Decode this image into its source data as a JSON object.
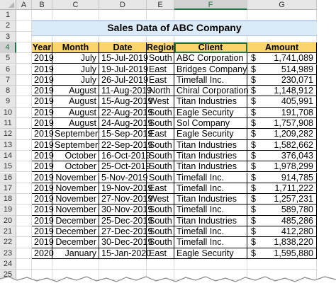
{
  "sheet": {
    "columns": [
      "A",
      "B",
      "C",
      "D",
      "E",
      "F",
      "G"
    ],
    "rows": [
      "1",
      "2",
      "3",
      "4",
      "5",
      "6",
      "7",
      "8",
      "9",
      "10",
      "11",
      "12",
      "13",
      "14",
      "15",
      "16",
      "17",
      "18",
      "19",
      "20",
      "21",
      "22",
      "23",
      "24",
      "25"
    ],
    "selected_column": "F",
    "selected_row": "4"
  },
  "title": "Sales Data of ABC Company",
  "table": {
    "headers": [
      "Year",
      "Month",
      "Date",
      "Region",
      "Client",
      "Amount"
    ],
    "currency_symbol": "$",
    "rows": [
      [
        "2019",
        "July",
        "15-Jul-2019",
        "South",
        "ABC Corporation",
        "1,741,089"
      ],
      [
        "2019",
        "July",
        "19-Jul-2019",
        "East",
        "Bridges Company",
        "514,989"
      ],
      [
        "2019",
        "July",
        "26-Jul-2019",
        "East",
        "Timefall Inc.",
        "230,071"
      ],
      [
        "2019",
        "August",
        "11-Aug-2019",
        "North",
        "Chiral Corporation",
        "1,148,912"
      ],
      [
        "2019",
        "August",
        "15-Aug-2019",
        "West",
        "Titan Industries",
        "405,991"
      ],
      [
        "2019",
        "August",
        "22-Aug-2019",
        "South",
        "Eagle Security",
        "191,708"
      ],
      [
        "2019",
        "August",
        "24-Aug-2019",
        "South",
        "Sol Company",
        "1,757,908"
      ],
      [
        "2019",
        "September",
        "15-Sep-2019",
        "East",
        "Eagle Security",
        "1,209,282"
      ],
      [
        "2019",
        "September",
        "22-Sep-2019",
        "South",
        "Titan Industries",
        "1,582,662"
      ],
      [
        "2019",
        "October",
        "16-Oct-2019",
        "South",
        "Titan Industries",
        "376,043"
      ],
      [
        "2019",
        "October",
        "25-Oct-2019",
        "South",
        "Titan Industries",
        "1,978,299"
      ],
      [
        "2019",
        "November",
        "5-Nov-2019",
        "South",
        "Timefall Inc.",
        "914,785"
      ],
      [
        "2019",
        "November",
        "19-Nov-2019",
        "East",
        "Timefall Inc.",
        "1,711,222"
      ],
      [
        "2019",
        "November",
        "27-Nov-2019",
        "West",
        "Titan Industries",
        "1,257,231"
      ],
      [
        "2019",
        "November",
        "30-Nov-2019",
        "South",
        "Timefall Inc.",
        "589,780"
      ],
      [
        "2019",
        "December",
        "25-Dec-2019",
        "South",
        "Titan Industries",
        "485,286"
      ],
      [
        "2019",
        "December",
        "27-Dec-2019",
        "South",
        "Timefall Inc.",
        "412,280"
      ],
      [
        "2019",
        "December",
        "30-Dec-2019",
        "South",
        "Timefall Inc.",
        "1,838,220"
      ],
      [
        "2020",
        "January",
        "15-Jan-2020",
        "East",
        "Eagle Security",
        "1,595,880"
      ]
    ]
  }
}
